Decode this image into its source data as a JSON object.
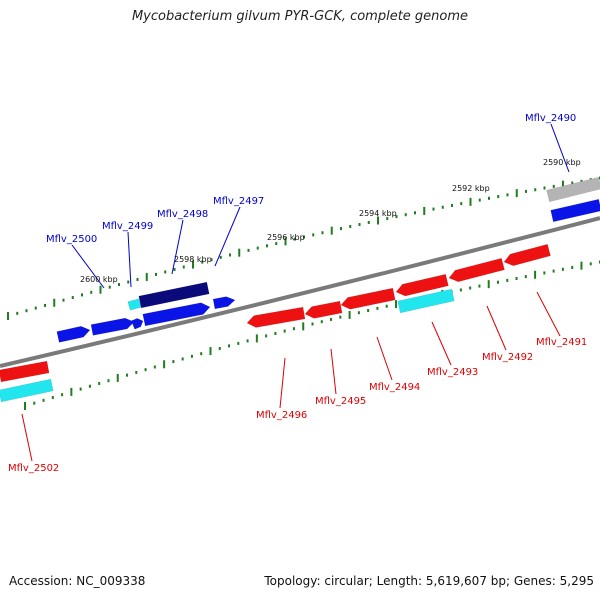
{
  "title": "Mycobacterium gilvum PYR-GCK, complete genome",
  "footer": {
    "accession": "Accession: NC_009338",
    "summary": "Topology: circular; Length: 5,619,607 bp; Genes: 5,295"
  },
  "colors": {
    "backbone": "#7a7a7a",
    "tick": "#1e7d1e",
    "forward_label": "#0000cc",
    "reverse_label": "#dd0000",
    "blue": "#0a14e6",
    "navy": "#0a0a7a",
    "red": "#ee1111",
    "cyan": "#22e6ee",
    "gray": "#b4b4b4"
  },
  "scale_labels": [
    {
      "key": "k2590",
      "text": "2590 kbp"
    },
    {
      "key": "k2592",
      "text": "2592 kbp"
    },
    {
      "key": "k2594",
      "text": "2594 kbp"
    },
    {
      "key": "k2596",
      "text": "2596 kbp"
    },
    {
      "key": "k2598",
      "text": "2598 kbp"
    },
    {
      "key": "k2600",
      "text": "2600 kbp"
    }
  ],
  "gene_labels": {
    "forward": [
      {
        "key": "g2490",
        "text": "Mflv_2490"
      },
      {
        "key": "g2497",
        "text": "Mflv_2497"
      },
      {
        "key": "g2498",
        "text": "Mflv_2498"
      },
      {
        "key": "g2499",
        "text": "Mflv_2499"
      },
      {
        "key": "g2500",
        "text": "Mflv_2500"
      }
    ],
    "reverse": [
      {
        "key": "g2491",
        "text": "Mflv_2491"
      },
      {
        "key": "g2492",
        "text": "Mflv_2492"
      },
      {
        "key": "g2493",
        "text": "Mflv_2493"
      },
      {
        "key": "g2494",
        "text": "Mflv_2494"
      },
      {
        "key": "g2495",
        "text": "Mflv_2495"
      },
      {
        "key": "g2496",
        "text": "Mflv_2496"
      },
      {
        "key": "g2502",
        "text": "Mflv_2502"
      }
    ]
  }
}
